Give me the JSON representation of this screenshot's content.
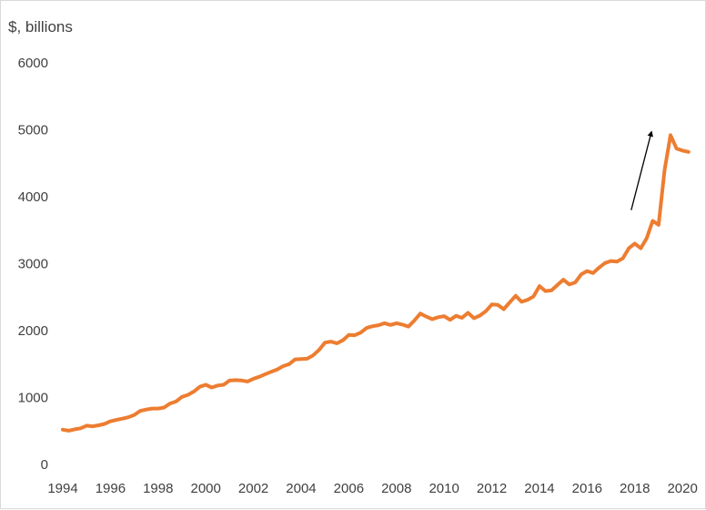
{
  "chart_data": {
    "type": "line",
    "title": "",
    "xlabel": "",
    "ylabel": "$, billions",
    "xlim": [
      1994,
      2020.3
    ],
    "ylim": [
      0,
      6000
    ],
    "grid": false,
    "legend": "none",
    "x_ticks": [
      "1994",
      "1996",
      "1998",
      "2000",
      "2002",
      "2004",
      "2006",
      "2008",
      "2010",
      "2012",
      "2014",
      "2016",
      "2018",
      "2020"
    ],
    "y_ticks": [
      "0",
      "1000",
      "2000",
      "3000",
      "4000",
      "5000",
      "6000"
    ],
    "series": [
      {
        "color": "#ED7D31",
        "points": [
          [
            1994.0,
            520
          ],
          [
            1994.25,
            505
          ],
          [
            1994.5,
            525
          ],
          [
            1994.75,
            540
          ],
          [
            1995.0,
            580
          ],
          [
            1995.25,
            570
          ],
          [
            1995.5,
            585
          ],
          [
            1995.75,
            605
          ],
          [
            1996.0,
            645
          ],
          [
            1996.25,
            665
          ],
          [
            1996.5,
            685
          ],
          [
            1996.75,
            705
          ],
          [
            1997.0,
            740
          ],
          [
            1997.25,
            800
          ],
          [
            1997.5,
            820
          ],
          [
            1997.75,
            835
          ],
          [
            1998.0,
            835
          ],
          [
            1998.25,
            850
          ],
          [
            1998.5,
            910
          ],
          [
            1998.75,
            940
          ],
          [
            1999.0,
            1010
          ],
          [
            1999.25,
            1040
          ],
          [
            1999.5,
            1090
          ],
          [
            1999.75,
            1160
          ],
          [
            2000.0,
            1190
          ],
          [
            2000.25,
            1150
          ],
          [
            2000.5,
            1180
          ],
          [
            2000.75,
            1190
          ],
          [
            2001.0,
            1255
          ],
          [
            2001.25,
            1260
          ],
          [
            2001.5,
            1255
          ],
          [
            2001.75,
            1240
          ],
          [
            2002.0,
            1280
          ],
          [
            2002.25,
            1310
          ],
          [
            2002.5,
            1350
          ],
          [
            2002.75,
            1385
          ],
          [
            2003.0,
            1420
          ],
          [
            2003.25,
            1470
          ],
          [
            2003.5,
            1500
          ],
          [
            2003.75,
            1570
          ],
          [
            2004.0,
            1575
          ],
          [
            2004.25,
            1580
          ],
          [
            2004.5,
            1630
          ],
          [
            2004.75,
            1710
          ],
          [
            2005.0,
            1820
          ],
          [
            2005.25,
            1835
          ],
          [
            2005.5,
            1810
          ],
          [
            2005.75,
            1855
          ],
          [
            2006.0,
            1935
          ],
          [
            2006.25,
            1930
          ],
          [
            2006.5,
            1970
          ],
          [
            2006.75,
            2040
          ],
          [
            2007.0,
            2065
          ],
          [
            2007.25,
            2080
          ],
          [
            2007.5,
            2110
          ],
          [
            2007.75,
            2085
          ],
          [
            2008.0,
            2110
          ],
          [
            2008.25,
            2090
          ],
          [
            2008.5,
            2060
          ],
          [
            2008.75,
            2150
          ],
          [
            2009.0,
            2255
          ],
          [
            2009.25,
            2210
          ],
          [
            2009.5,
            2170
          ],
          [
            2009.75,
            2200
          ],
          [
            2010.0,
            2215
          ],
          [
            2010.25,
            2160
          ],
          [
            2010.5,
            2220
          ],
          [
            2010.75,
            2190
          ],
          [
            2011.0,
            2265
          ],
          [
            2011.25,
            2185
          ],
          [
            2011.5,
            2225
          ],
          [
            2011.75,
            2290
          ],
          [
            2012.0,
            2390
          ],
          [
            2012.25,
            2385
          ],
          [
            2012.5,
            2320
          ],
          [
            2012.75,
            2420
          ],
          [
            2013.0,
            2520
          ],
          [
            2013.25,
            2430
          ],
          [
            2013.5,
            2460
          ],
          [
            2013.75,
            2510
          ],
          [
            2014.0,
            2665
          ],
          [
            2014.25,
            2590
          ],
          [
            2014.5,
            2600
          ],
          [
            2014.75,
            2680
          ],
          [
            2015.0,
            2760
          ],
          [
            2015.25,
            2690
          ],
          [
            2015.5,
            2720
          ],
          [
            2015.75,
            2840
          ],
          [
            2016.0,
            2890
          ],
          [
            2016.25,
            2860
          ],
          [
            2016.5,
            2940
          ],
          [
            2016.75,
            3010
          ],
          [
            2017.0,
            3040
          ],
          [
            2017.25,
            3030
          ],
          [
            2017.5,
            3080
          ],
          [
            2017.75,
            3230
          ],
          [
            2018.0,
            3300
          ],
          [
            2018.25,
            3230
          ],
          [
            2018.5,
            3380
          ],
          [
            2018.75,
            3640
          ],
          [
            2019.0,
            3580
          ],
          [
            2019.25,
            4400
          ],
          [
            2019.5,
            4920
          ],
          [
            2019.75,
            4720
          ],
          [
            2020.0,
            4690
          ],
          [
            2020.25,
            4670
          ]
        ]
      }
    ],
    "annotations": [
      {
        "type": "arrow",
        "from": [
          2017.85,
          3800
        ],
        "to": [
          2018.7,
          4970
        ],
        "color": "#000000"
      }
    ]
  }
}
